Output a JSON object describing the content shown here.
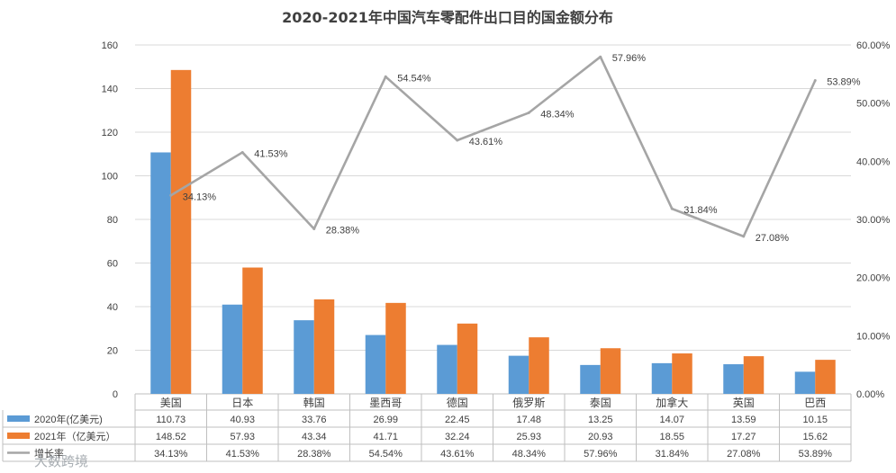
{
  "chart_data": {
    "type": "bar",
    "title": "2020-2021年中国汽车零配件出口目的国金额分布",
    "categories": [
      "美国",
      "日本",
      "韩国",
      "墨西哥",
      "德国",
      "俄罗斯",
      "泰国",
      "加拿大",
      "英国",
      "巴西"
    ],
    "series": [
      {
        "name": "2020年(亿美元)",
        "type": "bar",
        "axis": "left",
        "color": "#5B9BD5",
        "values": [
          110.73,
          40.93,
          33.76,
          26.99,
          22.45,
          17.48,
          13.25,
          14.07,
          13.59,
          10.15
        ]
      },
      {
        "name": "2021年（亿美元）",
        "type": "bar",
        "axis": "left",
        "color": "#ED7D31",
        "values": [
          148.52,
          57.93,
          43.34,
          41.71,
          32.24,
          25.93,
          20.93,
          18.55,
          17.27,
          15.62
        ]
      },
      {
        "name": "增长率",
        "type": "line",
        "axis": "right",
        "color": "#A5A5A5",
        "values": [
          34.13,
          41.53,
          28.38,
          54.54,
          43.61,
          48.34,
          57.96,
          31.84,
          27.08,
          53.89
        ]
      }
    ],
    "left_axis": {
      "min": 0,
      "max": 160,
      "step": 20,
      "tick_labels": [
        "0",
        "20",
        "40",
        "60",
        "80",
        "100",
        "120",
        "140",
        "160"
      ]
    },
    "right_axis": {
      "min": 0,
      "max": 60,
      "step": 10,
      "tick_labels": [
        "0.00%",
        "10.00%",
        "20.00%",
        "30.00%",
        "40.00%",
        "50.00%",
        "60.00%"
      ]
    },
    "data_labels": [
      "34.13%",
      "41.53%",
      "28.38%",
      "54.54%",
      "43.61%",
      "48.34%",
      "57.96%",
      "31.84%",
      "27.08%",
      "53.89%"
    ],
    "table": {
      "rows": [
        {
          "label": "2020年(亿美元)",
          "cells": [
            "110.73",
            "40.93",
            "33.76",
            "26.99",
            "22.45",
            "17.48",
            "13.25",
            "14.07",
            "13.59",
            "10.15"
          ]
        },
        {
          "label": "2021年（亿美元）",
          "cells": [
            "148.52",
            "57.93",
            "43.34",
            "41.71",
            "32.24",
            "25.93",
            "20.93",
            "18.55",
            "17.27",
            "15.62"
          ]
        },
        {
          "label": "增长率",
          "cells": [
            "34.13%",
            "41.53%",
            "28.38%",
            "54.54%",
            "43.61%",
            "48.34%",
            "57.96%",
            "31.84%",
            "27.08%",
            "53.89%"
          ]
        }
      ]
    },
    "gridlines": true,
    "watermark": "大数跨境"
  }
}
